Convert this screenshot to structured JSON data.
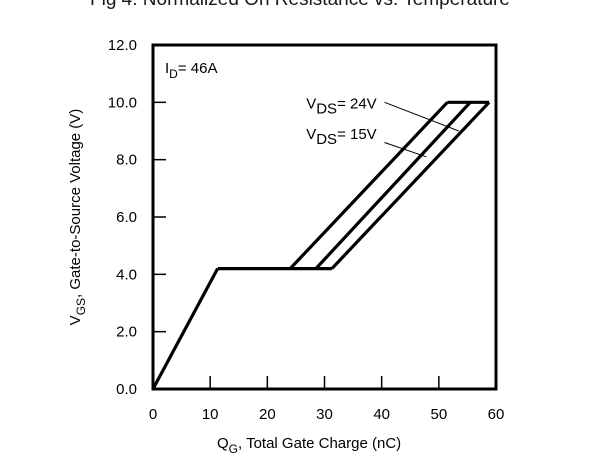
{
  "page_title": "Fig 4. Normalized On Resistance vs. Temperature",
  "chart_data": {
    "type": "line",
    "title": "Fig 4. Normalized On Resistance vs. Temperature",
    "xlabel": {
      "main": "Q",
      "sub": "G",
      "rest": ",  Total Gate Charge (nC)"
    },
    "ylabel": {
      "main": "V",
      "sub": "GS",
      "rest": ", Gate-to-Source Voltage (V)"
    },
    "xlim": [
      0,
      60
    ],
    "ylim": [
      0,
      12
    ],
    "xticks": [
      0,
      10,
      20,
      30,
      40,
      50,
      60
    ],
    "xtick_labels": [
      "0",
      "10",
      "20",
      "30",
      "40",
      "50",
      "60"
    ],
    "yticks": [
      0,
      2,
      4,
      6,
      8,
      10,
      12
    ],
    "ytick_labels": [
      "0.0",
      "2.0",
      "4.0",
      "6.0",
      "8.0",
      "10.0",
      "12.0"
    ],
    "grid": false,
    "condition": {
      "main": "I",
      "sub": "D",
      "rest": "= 46A"
    },
    "series": [
      {
        "name": "common rise",
        "x": [
          0,
          11.3
        ],
        "y": [
          0,
          4.2
        ]
      },
      {
        "name": "plateau",
        "x": [
          11.3,
          31.3
        ],
        "y": [
          4.2,
          4.2
        ]
      },
      {
        "name": "branch 1",
        "x": [
          24,
          51.5
        ],
        "y": [
          4.2,
          10.0
        ]
      },
      {
        "name": "branch 2",
        "x": [
          28.5,
          55.5
        ],
        "y": [
          4.2,
          10.0
        ]
      },
      {
        "name": "branch 3",
        "x": [
          31.3,
          58.8
        ],
        "y": [
          4.2,
          10.0
        ]
      },
      {
        "name": "clamp",
        "x": [
          51.5,
          58.8
        ],
        "y": [
          10.0,
          10.0
        ]
      }
    ],
    "annotations": [
      {
        "main": "V",
        "sub": "DS",
        "rest": "= 24V",
        "leader_x": [
          40.5,
          53.5
        ],
        "leader_y": [
          10.0,
          9.0
        ]
      },
      {
        "main": "V",
        "sub": "DS",
        "rest": "= 15V",
        "leader_x": [
          40.5,
          47.8
        ],
        "leader_y": [
          8.6,
          8.1
        ]
      }
    ]
  }
}
